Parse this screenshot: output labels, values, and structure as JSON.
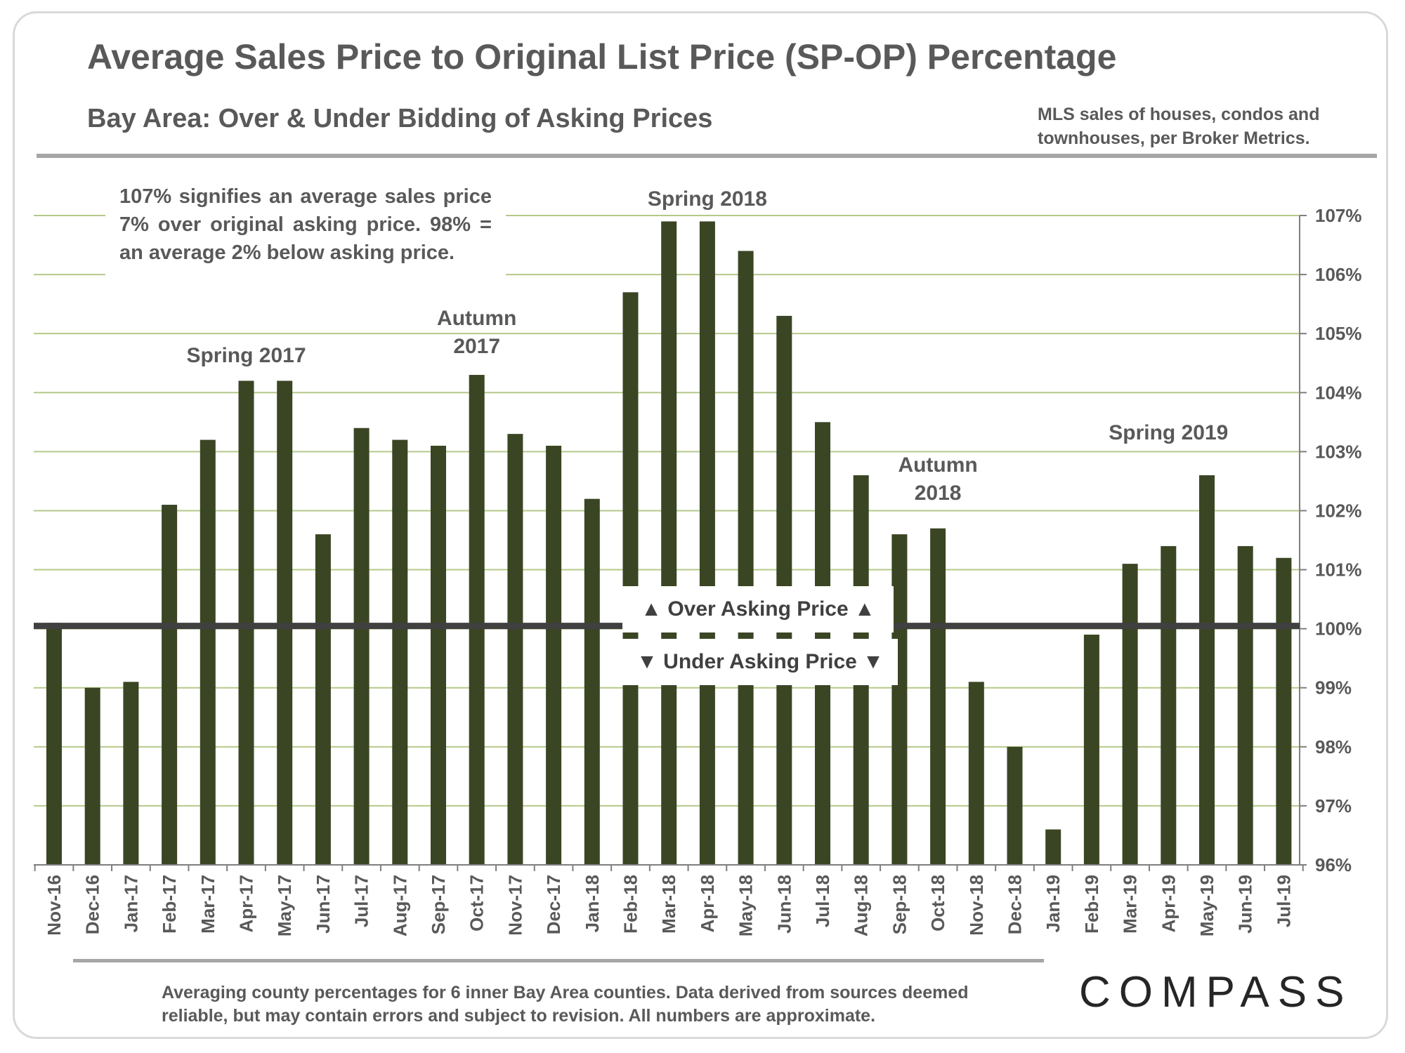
{
  "title": "Average Sales Price to Original List Price (SP-OP) Percentage",
  "subtitle": "Bay Area: Over & Under Bidding of Asking Prices",
  "source_line1": "MLS sales of houses, condos and",
  "source_line2": "townhouses, per Broker Metrics.",
  "note_text": "107% signifies an average sales price 7% over original asking price. 98% = an average 2% below asking price.",
  "over_label": "▲ Over Asking Price ▲",
  "under_label": "▼ Under Asking Price ▼",
  "footnote_line1": "Averaging county percentages for 6 inner Bay Area counties. Data derived from sources deemed",
  "footnote_line2": "reliable, but may contain errors and subject to revision. All numbers are approximate.",
  "logo": "COMPASS",
  "colors": {
    "bar": "#3a4524",
    "grid": "#b5c98a",
    "baseline": "#404040",
    "text": "#595959"
  },
  "chart_data": {
    "type": "bar",
    "title": "Average Sales Price to Original List Price (SP-OP) Percentage",
    "xlabel": "",
    "ylabel": "",
    "ylim": [
      96,
      107
    ],
    "reference_line": 100,
    "yticks": [
      "96%",
      "97%",
      "98%",
      "99%",
      "100%",
      "101%",
      "102%",
      "103%",
      "104%",
      "105%",
      "106%",
      "107%"
    ],
    "categories": [
      "Nov-16",
      "Dec-16",
      "Jan-17",
      "Feb-17",
      "Mar-17",
      "Apr-17",
      "May-17",
      "Jun-17",
      "Jul-17",
      "Aug-17",
      "Sep-17",
      "Oct-17",
      "Nov-17",
      "Dec-17",
      "Jan-18",
      "Feb-18",
      "Mar-18",
      "Apr-18",
      "May-18",
      "Jun-18",
      "Jul-18",
      "Aug-18",
      "Sep-18",
      "Oct-18",
      "Nov-18",
      "Dec-18",
      "Jan-19",
      "Feb-19",
      "Mar-19",
      "Apr-19",
      "May-19",
      "Jun-19",
      "Jul-19"
    ],
    "values": [
      100.1,
      99.0,
      99.1,
      102.1,
      103.2,
      104.2,
      104.2,
      101.6,
      103.4,
      103.2,
      103.1,
      104.3,
      103.3,
      103.1,
      102.2,
      105.7,
      106.9,
      106.9,
      106.4,
      105.3,
      103.5,
      102.6,
      101.6,
      101.7,
      99.1,
      98.0,
      96.6,
      99.9,
      101.1,
      101.4,
      102.6,
      101.4,
      101.2
    ],
    "annotations": [
      {
        "lines": [
          "Spring 2017"
        ],
        "category": "Apr-17"
      },
      {
        "lines": [
          "Autumn",
          "2017"
        ],
        "category": "Oct-17"
      },
      {
        "lines": [
          "Spring 2018"
        ],
        "category": "Apr-18"
      },
      {
        "lines": [
          "Autumn",
          "2018"
        ],
        "category": "Oct-18"
      },
      {
        "lines": [
          "Spring 2019"
        ],
        "category": "Apr-19"
      }
    ]
  }
}
